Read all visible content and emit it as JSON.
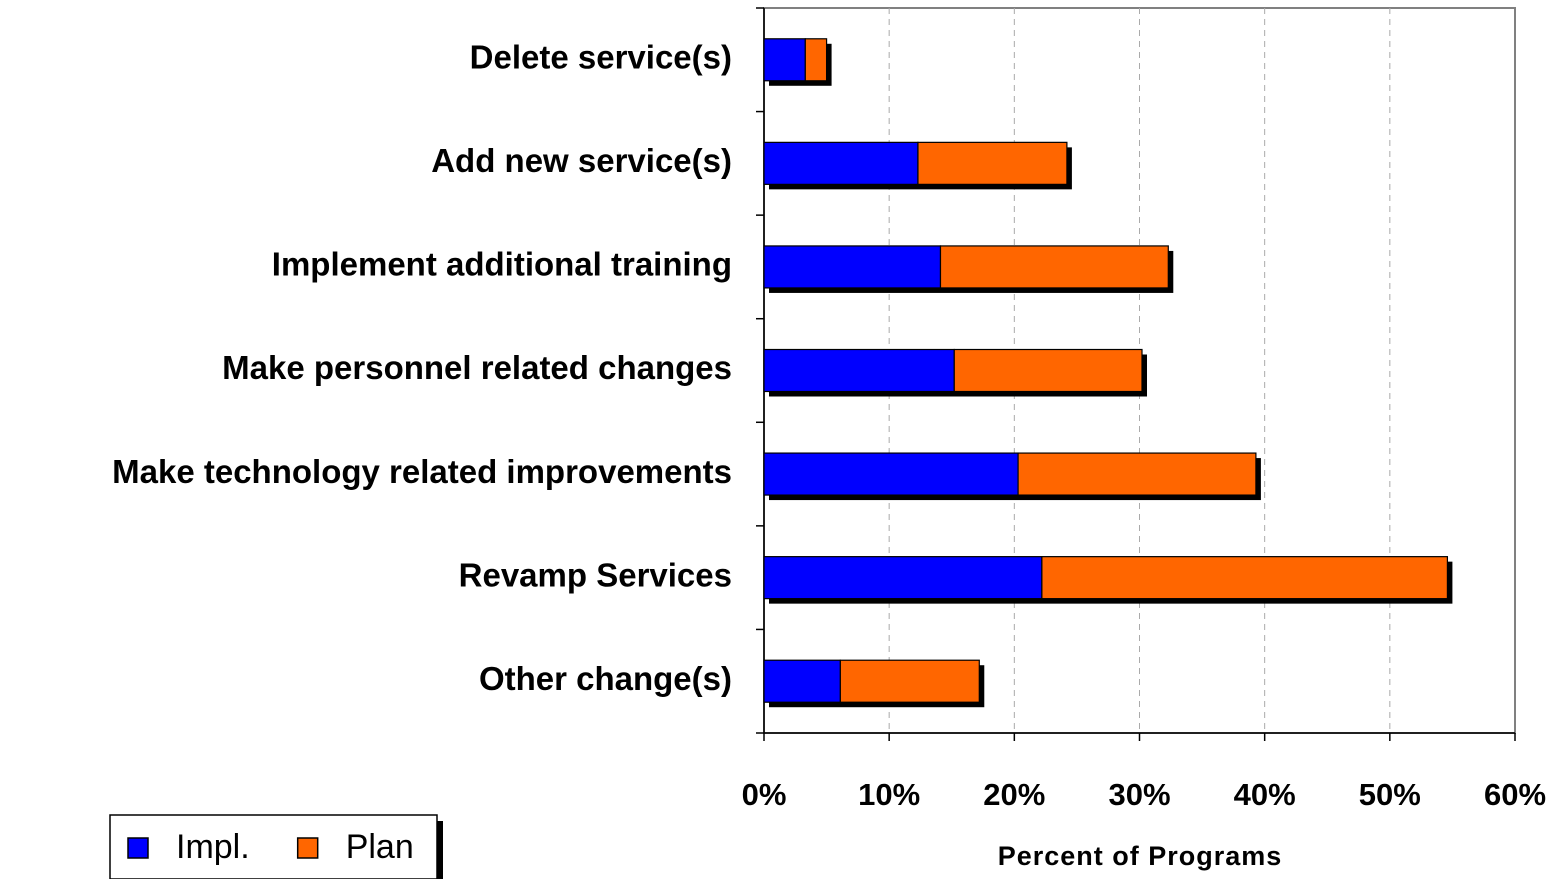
{
  "chart_data": {
    "type": "stacked-barh",
    "x_label": "Percent of Programs",
    "categories": [
      "Delete service(s)",
      "Add new service(s)",
      "Implement additional training",
      "Make personnel related changes",
      "Make technology related improvements",
      "Revamp Services",
      "Other change(s)"
    ],
    "series": [
      {
        "name": "Impl.",
        "color": "#0000ff",
        "values": [
          3.3,
          12.3,
          14.1,
          15.2,
          20.3,
          22.2,
          6.1
        ]
      },
      {
        "name": "Plan",
        "color": "#ff6600",
        "values": [
          1.7,
          11.9,
          18.2,
          15.0,
          19.0,
          32.4,
          11.1
        ]
      }
    ],
    "xlim": [
      0,
      60
    ],
    "xticks": [
      {
        "value": 0,
        "label": "0%"
      },
      {
        "value": 10,
        "label": "10%"
      },
      {
        "value": 20,
        "label": "20%"
      },
      {
        "value": 30,
        "label": "30%"
      },
      {
        "value": 40,
        "label": "40%"
      },
      {
        "value": 50,
        "label": "50%"
      },
      {
        "value": 60,
        "label": "60%"
      }
    ],
    "grid": true
  }
}
